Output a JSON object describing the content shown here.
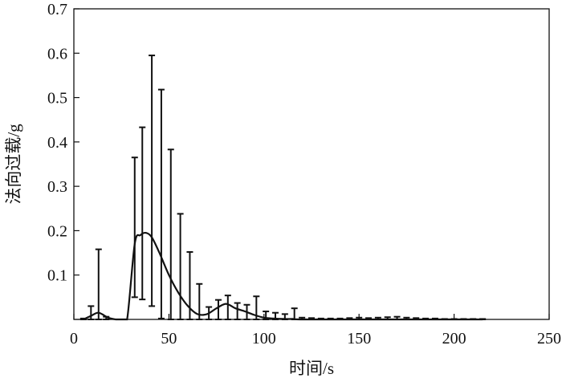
{
  "chart_data": {
    "type": "line",
    "title": "",
    "xlabel": "时间/s",
    "ylabel": "法向过载/g",
    "xlim": [
      0,
      250
    ],
    "ylim": [
      0,
      0.7
    ],
    "x_ticks": [
      0,
      50,
      100,
      150,
      200,
      250
    ],
    "y_ticks": [
      0,
      0.1,
      0.2,
      0.3,
      0.4,
      0.5,
      0.6,
      0.7
    ],
    "x_tick_labels": [
      "0",
      "50",
      "100",
      "150",
      "200",
      "250"
    ],
    "y_tick_labels": [
      "",
      "0.1",
      "0.2",
      "0.3",
      "0.4",
      "0.5",
      "0.6",
      "0.7"
    ],
    "grid": false,
    "series": [
      {
        "mean_curve": {
          "x": [
            5,
            9,
            13,
            18,
            22,
            25,
            28,
            32,
            35,
            38,
            41,
            45,
            50,
            55,
            60,
            65,
            70,
            75,
            80,
            85,
            90,
            95,
            100,
            105,
            110,
            115,
            120,
            150,
            180,
            215
          ],
          "y": [
            0.0,
            0.008,
            0.015,
            0.004,
            0.0,
            0.0,
            0.0,
            0.17,
            0.19,
            0.195,
            0.185,
            0.15,
            0.1,
            0.06,
            0.03,
            0.012,
            0.012,
            0.025,
            0.035,
            0.025,
            0.018,
            0.01,
            0.004,
            0.002,
            0.001,
            0.001,
            0.0,
            0.0,
            0.0,
            0.0
          ]
        },
        "error_bars": {
          "x": [
            5,
            9,
            13,
            17,
            32,
            36,
            41,
            46,
            51,
            56,
            61,
            66,
            71,
            76,
            81,
            86,
            91,
            96,
            101,
            106,
            111,
            116,
            120,
            125,
            130,
            135,
            140,
            145,
            150,
            155,
            160,
            165,
            170,
            175,
            180,
            185,
            190,
            195,
            200,
            205,
            210,
            215
          ],
          "upper": [
            0.002,
            0.03,
            0.158,
            0.006,
            0.365,
            0.433,
            0.595,
            0.518,
            0.383,
            0.238,
            0.152,
            0.08,
            0.028,
            0.044,
            0.054,
            0.037,
            0.033,
            0.052,
            0.018,
            0.015,
            0.012,
            0.025,
            0.004,
            0.003,
            0.002,
            0.002,
            0.002,
            0.003,
            0.004,
            0.003,
            0.004,
            0.005,
            0.006,
            0.004,
            0.003,
            0.002,
            0.002,
            0.001,
            0.001,
            0.001,
            0.001,
            0.001
          ],
          "lower": [
            0,
            0,
            0,
            0,
            0.05,
            0.045,
            0.03,
            0.002,
            0.0,
            0.0,
            0.0,
            0.0,
            0.0,
            0.0,
            0.0,
            0.0,
            0.0,
            0.0,
            0.0,
            0.0,
            0.0,
            0.0,
            0.0,
            0.0,
            0.0,
            0.0,
            0.0,
            0.0,
            0.0,
            0.0,
            0.0,
            0.0,
            0.0,
            0.0,
            0.0,
            0.0,
            0.0,
            0.0,
            0.0,
            0.0,
            0.0,
            0.0
          ]
        }
      }
    ]
  }
}
